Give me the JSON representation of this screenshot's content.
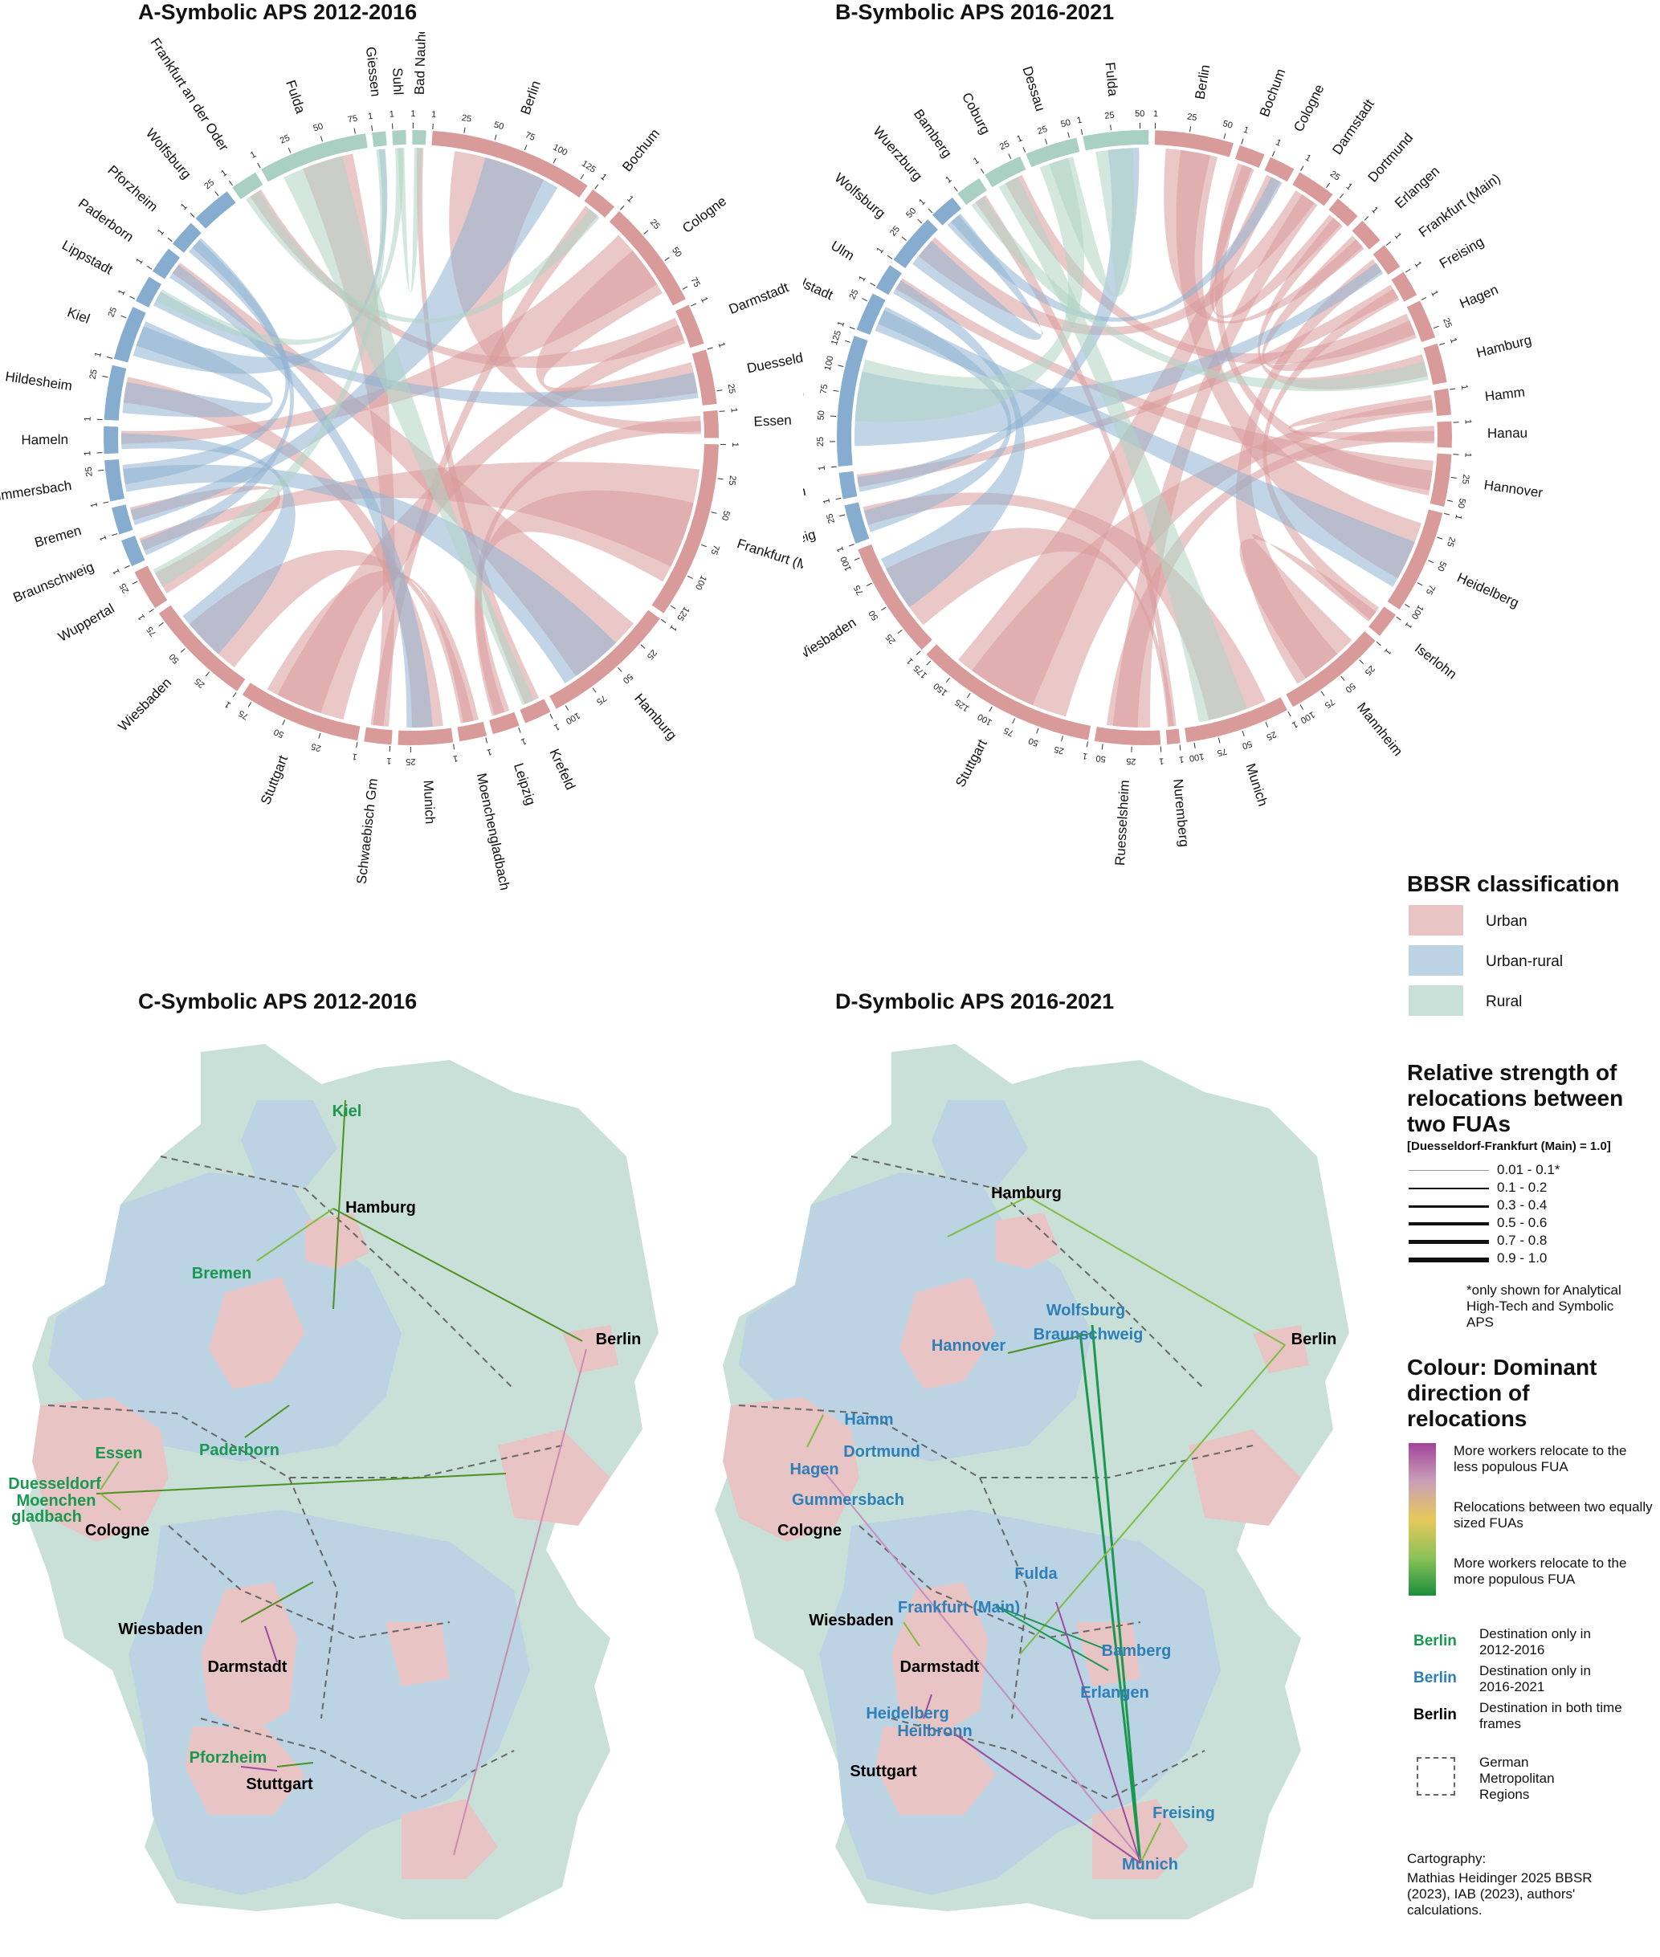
{
  "panels": {
    "a_title": "A-Symbolic APS 2012-2016",
    "b_title": "B-Symbolic APS 2016-2021",
    "c_title": "C-Symbolic APS 2012-2016",
    "d_title": "D-Symbolic APS 2016-2021"
  },
  "colors": {
    "urban": "#e8c4c4",
    "urban_rural": "#bcd3e3",
    "rural": "#c9e0d8",
    "urban_arc": "#d99a9a",
    "urban_rural_arc": "#8fb3d1",
    "rural_arc": "#b0d3c5",
    "green_label": "#1a9850",
    "blue_label": "#2c7fb8"
  },
  "chord_a": {
    "sectors": [
      {
        "name": "Berlin",
        "cls": "urban",
        "ticks": [
          "1",
          "25",
          "50",
          "75",
          "100",
          "125"
        ]
      },
      {
        "name": "Bochum",
        "cls": "urban",
        "ticks": [
          "1"
        ]
      },
      {
        "name": "Cologne",
        "cls": "urban",
        "ticks": [
          "1",
          "25",
          "50",
          "75"
        ]
      },
      {
        "name": "Darmstadt",
        "cls": "urban",
        "ticks": [
          "1"
        ]
      },
      {
        "name": "Duesseldorf",
        "cls": "urban",
        "ticks": [
          "1",
          "25"
        ]
      },
      {
        "name": "Essen",
        "cls": "urban",
        "ticks": [
          "1"
        ]
      },
      {
        "name": "Frankfurt (Main)",
        "cls": "urban",
        "ticks": [
          "1",
          "25",
          "50",
          "75",
          "100",
          "125"
        ]
      },
      {
        "name": "Hamburg",
        "cls": "urban",
        "ticks": [
          "1",
          "25",
          "50",
          "75",
          "100"
        ]
      },
      {
        "name": "Krefeld",
        "cls": "urban",
        "ticks": [
          "1"
        ]
      },
      {
        "name": "Leipzig",
        "cls": "urban",
        "ticks": [
          "1"
        ]
      },
      {
        "name": "Moenchengladbach",
        "cls": "urban",
        "ticks": [
          "1"
        ]
      },
      {
        "name": "Munich",
        "cls": "urban",
        "ticks": [
          "1",
          "25"
        ]
      },
      {
        "name": "Schwaebisch Gm",
        "cls": "urban",
        "ticks": [
          "1"
        ]
      },
      {
        "name": "Stuttgart",
        "cls": "urban",
        "ticks": [
          "1",
          "25",
          "50",
          "75"
        ]
      },
      {
        "name": "Wiesbaden",
        "cls": "urban",
        "ticks": [
          "1",
          "25",
          "50",
          "75"
        ]
      },
      {
        "name": "Wuppertal",
        "cls": "urban",
        "ticks": [
          "1",
          "25"
        ]
      },
      {
        "name": "Braunschweig",
        "cls": "urban_rural",
        "ticks": [
          "1"
        ]
      },
      {
        "name": "Bremen",
        "cls": "urban_rural",
        "ticks": [
          "1"
        ]
      },
      {
        "name": "Gummersbach",
        "cls": "urban_rural",
        "ticks": [
          "1",
          "25"
        ]
      },
      {
        "name": "Hameln",
        "cls": "urban_rural",
        "ticks": [
          "1"
        ]
      },
      {
        "name": "Hildesheim",
        "cls": "urban_rural",
        "ticks": [
          "1",
          "25"
        ]
      },
      {
        "name": "Kiel",
        "cls": "urban_rural",
        "ticks": [
          "1",
          "25"
        ]
      },
      {
        "name": "Lippstadt",
        "cls": "urban_rural",
        "ticks": [
          "1"
        ]
      },
      {
        "name": "Paderborn",
        "cls": "urban_rural",
        "ticks": [
          "1"
        ]
      },
      {
        "name": "Pforzheim",
        "cls": "urban_rural",
        "ticks": [
          "1"
        ]
      },
      {
        "name": "Wolfsburg",
        "cls": "urban_rural",
        "ticks": [
          "1",
          "25"
        ]
      },
      {
        "name": "Frankfurt an der Oder",
        "cls": "rural",
        "ticks": [
          "1"
        ]
      },
      {
        "name": "Fulda",
        "cls": "rural",
        "ticks": [
          "1",
          "25",
          "50",
          "75"
        ]
      },
      {
        "name": "Giessen",
        "cls": "rural",
        "ticks": [
          "1"
        ]
      },
      {
        "name": "Suhl",
        "cls": "rural",
        "ticks": [
          "1"
        ]
      },
      {
        "name": "Bad Nauheim",
        "cls": "rural",
        "ticks": [
          "1"
        ]
      }
    ],
    "weights": [
      12,
      2,
      8,
      3,
      4,
      2,
      13,
      10,
      2,
      2,
      2,
      4,
      2,
      9,
      8,
      3,
      2,
      2,
      3,
      2,
      4,
      4,
      2,
      2,
      2,
      3,
      2,
      8,
      1,
      1,
      1
    ]
  },
  "chord_b": {
    "sectors": [
      {
        "name": "Berlin",
        "cls": "urban",
        "ticks": [
          "1",
          "25",
          "50"
        ]
      },
      {
        "name": "Bochum",
        "cls": "urban",
        "ticks": [
          "1"
        ]
      },
      {
        "name": "Cologne",
        "cls": "urban",
        "ticks": [
          "1"
        ]
      },
      {
        "name": "Darmstadt",
        "cls": "urban",
        "ticks": [
          "1",
          "25"
        ]
      },
      {
        "name": "Dortmund",
        "cls": "urban",
        "ticks": [
          "1"
        ]
      },
      {
        "name": "Erlangen",
        "cls": "urban",
        "ticks": [
          "1"
        ]
      },
      {
        "name": "Frankfurt (Main)",
        "cls": "urban",
        "ticks": [
          "1"
        ]
      },
      {
        "name": "Freising",
        "cls": "urban",
        "ticks": [
          "1"
        ]
      },
      {
        "name": "Hagen",
        "cls": "urban",
        "ticks": [
          "1",
          "25"
        ]
      },
      {
        "name": "Hamburg",
        "cls": "urban",
        "ticks": [
          "1"
        ]
      },
      {
        "name": "Hamm",
        "cls": "urban",
        "ticks": [
          "1"
        ]
      },
      {
        "name": "Hanau",
        "cls": "urban",
        "ticks": [
          "1"
        ]
      },
      {
        "name": "Hannover",
        "cls": "urban",
        "ticks": [
          "1",
          "25",
          "50"
        ]
      },
      {
        "name": "Heidelberg",
        "cls": "urban",
        "ticks": [
          "1",
          "25",
          "50",
          "75",
          "100"
        ]
      },
      {
        "name": "Iserlohn",
        "cls": "urban",
        "ticks": [
          "1"
        ]
      },
      {
        "name": "Mannheim",
        "cls": "urban",
        "ticks": [
          "1",
          "25",
          "50",
          "75",
          "100"
        ]
      },
      {
        "name": "Munich",
        "cls": "urban",
        "ticks": [
          "1",
          "25",
          "50",
          "75",
          "100"
        ]
      },
      {
        "name": "Nuremberg",
        "cls": "urban",
        "ticks": [
          "1"
        ]
      },
      {
        "name": "Ruesselsheim",
        "cls": "urban",
        "ticks": [
          "1",
          "25",
          "50"
        ]
      },
      {
        "name": "Stuttgart",
        "cls": "urban",
        "ticks": [
          "1",
          "25",
          "50",
          "75",
          "100",
          "125",
          "150",
          "175"
        ]
      },
      {
        "name": "Wiesbaden",
        "cls": "urban",
        "ticks": [
          "1",
          "25",
          "50",
          "75",
          "100"
        ]
      },
      {
        "name": "Braunschweig",
        "cls": "urban_rural",
        "ticks": [
          "1",
          "25"
        ]
      },
      {
        "name": "Bremen",
        "cls": "urban_rural",
        "ticks": [
          "1"
        ]
      },
      {
        "name": "Heilbronn",
        "cls": "urban_rural",
        "ticks": [
          "1",
          "25",
          "50",
          "75",
          "100",
          "125"
        ]
      },
      {
        "name": "Ingolstadt",
        "cls": "urban_rural",
        "ticks": [
          "1",
          "25"
        ]
      },
      {
        "name": "Ulm",
        "cls": "urban_rural",
        "ticks": [
          "1"
        ]
      },
      {
        "name": "Wolfsburg",
        "cls": "urban_rural",
        "ticks": [
          "1",
          "25",
          "50"
        ]
      },
      {
        "name": "Wuerzburg",
        "cls": "urban_rural",
        "ticks": [
          "1"
        ]
      },
      {
        "name": "Bamberg",
        "cls": "rural",
        "ticks": [
          "1"
        ]
      },
      {
        "name": "Coburg",
        "cls": "rural",
        "ticks": [
          "1",
          "25"
        ]
      },
      {
        "name": "Dessau",
        "cls": "rural",
        "ticks": [
          "1",
          "25",
          "50"
        ]
      },
      {
        "name": "Fulda",
        "cls": "rural",
        "ticks": [
          "1",
          "25",
          "50"
        ]
      }
    ],
    "weights": [
      6,
      2,
      2,
      3,
      2,
      2,
      2,
      2,
      3,
      3,
      2,
      2,
      4,
      8,
      2,
      8,
      8,
      1,
      5,
      14,
      9,
      3,
      2,
      10,
      3,
      2,
      4,
      2,
      2,
      3,
      4,
      5
    ]
  },
  "legend": {
    "classification_title": "BBSR classification",
    "urban": "Urban",
    "urban_rural": "Urban-rural",
    "rural": "Rural",
    "strength_title": "Relative strength of relocations between two FUAs",
    "strength_sub": "[Duesseldorf-Frankfurt (Main) = 1.0]",
    "strength_items": [
      "0.01 - 0.1*",
      "0.1 - 0.2",
      "0.3 - 0.4",
      "0.5 - 0.6",
      "0.7 - 0.8",
      "0.9 - 1.0"
    ],
    "strength_note": "*only shown for Analytical High-Tech and Symbolic APS",
    "colour_title": "Colour: Dominant direction of relocations",
    "grad_top": "More workers relocate to the less populous FUA",
    "grad_mid": "Relocations between two equally sized FUAs",
    "grad_bot": "More workers relocate to the more populous FUA",
    "dest_1_label": "Berlin",
    "dest_1_text": "Destination only in 2012-2016",
    "dest_2_label": "Berlin",
    "dest_2_text": "Destination only in 2016-2021",
    "dest_3_label": "Berlin",
    "dest_3_text": "Destination in both time frames",
    "regions_text": "German Metropolitan Regions",
    "credit_title": "Cartography:",
    "credit_text": "Mathias Heidinger 2025 BBSR (2023), IAB (2023), authors' calculations."
  },
  "map_c": {
    "cities": [
      {
        "name": "Kiel",
        "style": "green"
      },
      {
        "name": "Hamburg",
        "style": "black"
      },
      {
        "name": "Bremen",
        "style": "green"
      },
      {
        "name": "Berlin",
        "style": "black"
      },
      {
        "name": "Paderborn",
        "style": "green"
      },
      {
        "name": "Essen",
        "style": "green"
      },
      {
        "name": "Duesseldorf",
        "style": "green"
      },
      {
        "name": "Moenchen",
        "style": "green"
      },
      {
        "name": "gladbach",
        "style": "green"
      },
      {
        "name": "Cologne",
        "style": "black"
      },
      {
        "name": "Wiesbaden",
        "style": "black"
      },
      {
        "name": "Darmstadt",
        "style": "black"
      },
      {
        "name": "Pforzheim",
        "style": "green"
      },
      {
        "name": "Stuttgart",
        "style": "black"
      }
    ]
  },
  "map_d": {
    "cities": [
      {
        "name": "Hamburg",
        "style": "black"
      },
      {
        "name": "Berlin",
        "style": "black"
      },
      {
        "name": "Wolfsburg",
        "style": "blue"
      },
      {
        "name": "Hannover",
        "style": "blue"
      },
      {
        "name": "Braunschweig",
        "style": "blue"
      },
      {
        "name": "Hamm",
        "style": "blue"
      },
      {
        "name": "Dortmund",
        "style": "blue"
      },
      {
        "name": "Hagen",
        "style": "blue"
      },
      {
        "name": "Gummersbach",
        "style": "blue"
      },
      {
        "name": "Cologne",
        "style": "black"
      },
      {
        "name": "Fulda",
        "style": "blue"
      },
      {
        "name": "Frankfurt (Main)",
        "style": "blue"
      },
      {
        "name": "Wiesbaden",
        "style": "black"
      },
      {
        "name": "Darmstadt",
        "style": "black"
      },
      {
        "name": "Bamberg",
        "style": "blue"
      },
      {
        "name": "Erlangen",
        "style": "blue"
      },
      {
        "name": "Heidelberg",
        "style": "blue"
      },
      {
        "name": "Heilbronn",
        "style": "blue"
      },
      {
        "name": "Stuttgart",
        "style": "black"
      },
      {
        "name": "Freising",
        "style": "blue"
      },
      {
        "name": "Munich",
        "style": "blue"
      }
    ]
  }
}
